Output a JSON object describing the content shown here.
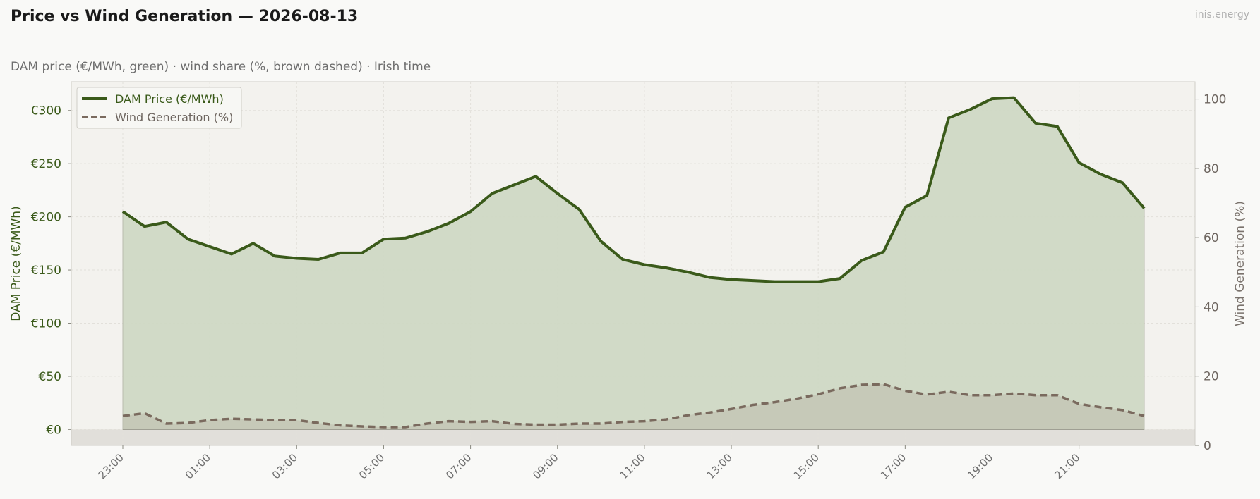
{
  "header": {
    "title": "Price vs Wind Generation — 2026-08-13",
    "brand": "inis.energy",
    "subtitle": "DAM price (€/MWh, green)  ·  wind share (%, brown dashed)  ·  Irish time"
  },
  "colors": {
    "price": "#3a5a1a",
    "price_fill": "#cfd8c4",
    "wind": "#7a6a5e",
    "wind_fill": "#c2c2b2",
    "plot_bg": "#f3f2ee",
    "below_zero": "#e1dfda"
  },
  "chart_data": {
    "type": "line",
    "xlabel": "",
    "ylabel": "DAM Price (€/MWh)",
    "y2label": "Wind Generation (%)",
    "ylim": [
      -15,
      327
    ],
    "y2lim": [
      0,
      105
    ],
    "yticks": [
      0,
      50,
      100,
      150,
      200,
      250,
      300
    ],
    "ytick_labels": [
      "€0",
      "€50",
      "€100",
      "€150",
      "€200",
      "€250",
      "€300"
    ],
    "y2ticks": [
      0,
      20,
      40,
      60,
      80,
      100
    ],
    "y2tick_labels": [
      "0",
      "20",
      "40",
      "60",
      "80",
      "100"
    ],
    "xticks": [
      "23:00",
      "01:00",
      "03:00",
      "05:00",
      "07:00",
      "09:00",
      "11:00",
      "13:00",
      "15:00",
      "17:00",
      "19:00",
      "21:00"
    ],
    "grid": true,
    "legend_position": "top-left",
    "x": [
      "23:00",
      "23:30",
      "00:00",
      "00:30",
      "01:00",
      "01:30",
      "02:00",
      "02:30",
      "03:00",
      "03:30",
      "04:00",
      "04:30",
      "05:00",
      "05:30",
      "06:00",
      "06:30",
      "07:00",
      "07:30",
      "08:00",
      "08:30",
      "09:00",
      "09:30",
      "10:00",
      "10:30",
      "11:00",
      "11:30",
      "12:00",
      "12:30",
      "13:00",
      "13:30",
      "14:00",
      "14:30",
      "15:00",
      "15:30",
      "16:00",
      "16:30",
      "17:00",
      "17:30",
      "18:00",
      "18:30",
      "19:00",
      "19:30",
      "20:00",
      "20:30",
      "21:00",
      "21:30",
      "22:00",
      "22:30"
    ],
    "series": [
      {
        "name": "DAM Price (€/MWh)",
        "axis": "left",
        "style": "solid",
        "values": [
          205,
          191,
          195,
          179,
          172,
          165,
          175,
          163,
          161,
          160,
          166,
          166,
          179,
          180,
          186,
          194,
          205,
          222,
          230,
          238,
          222,
          207,
          177,
          160,
          155,
          152,
          148,
          143,
          141,
          140,
          139,
          139,
          139,
          142,
          159,
          167,
          209,
          220,
          293,
          301,
          311,
          312,
          288,
          285,
          251,
          240,
          232,
          208
        ]
      },
      {
        "name": "Wind Generation (%)",
        "axis": "right",
        "style": "dashed",
        "values": [
          8.5,
          9.3,
          6.3,
          6.5,
          7.3,
          7.7,
          7.5,
          7.3,
          7.3,
          6.5,
          5.8,
          5.5,
          5.3,
          5.3,
          6.3,
          7.0,
          6.8,
          7.0,
          6.2,
          6.0,
          6.0,
          6.3,
          6.3,
          6.8,
          7.0,
          7.5,
          8.7,
          9.5,
          10.5,
          11.7,
          12.5,
          13.5,
          14.8,
          16.5,
          17.5,
          17.7,
          15.8,
          14.7,
          15.5,
          14.5,
          14.5,
          15.0,
          14.5,
          14.5,
          12.0,
          11.0,
          10.2,
          8.5
        ]
      }
    ]
  }
}
